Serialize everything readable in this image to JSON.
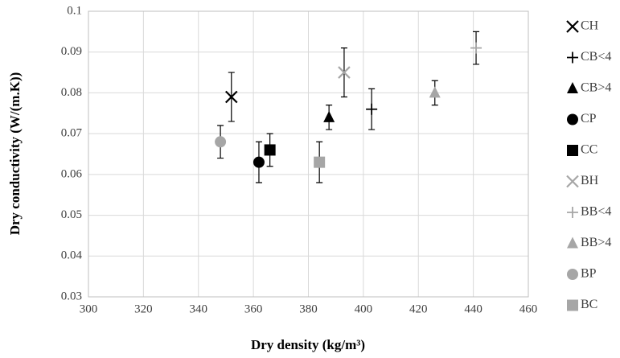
{
  "chart_data": {
    "type": "scatter",
    "xlabel": "Dry density (kg/m³)",
    "ylabel": "Dry conductivity (W/(m.K))",
    "xlim": [
      300,
      460
    ],
    "xticks": [
      300,
      320,
      340,
      360,
      380,
      400,
      420,
      440,
      460
    ],
    "ylim": [
      0.03,
      0.1
    ],
    "yticks": [
      0.03,
      0.04,
      0.05,
      0.06,
      0.07,
      0.08,
      0.09,
      0.1
    ],
    "grid": true,
    "legend": "right",
    "series": [
      {
        "name": "CH",
        "color": "#000000",
        "marker": "x",
        "x": [
          352
        ],
        "values": [
          0.079
        ],
        "errors": [
          0.006
        ]
      },
      {
        "name": "CB<4",
        "color": "#000000",
        "marker": "plus",
        "x": [
          403
        ],
        "values": [
          0.076
        ],
        "errors": [
          0.005
        ]
      },
      {
        "name": "CB>4",
        "color": "#000000",
        "marker": "triangle",
        "x": [
          387.5
        ],
        "values": [
          0.074
        ],
        "errors": [
          0.003
        ]
      },
      {
        "name": "CP",
        "color": "#000000",
        "marker": "circle",
        "x": [
          362
        ],
        "values": [
          0.063
        ],
        "errors": [
          0.005
        ]
      },
      {
        "name": "CC",
        "color": "#000000",
        "marker": "square",
        "x": [
          366
        ],
        "values": [
          0.066
        ],
        "errors": [
          0.004
        ]
      },
      {
        "name": "BH",
        "color": "#a6a6a6",
        "marker": "x",
        "x": [
          393
        ],
        "values": [
          0.085
        ],
        "errors": [
          0.006
        ]
      },
      {
        "name": "BB<4",
        "color": "#a6a6a6",
        "marker": "plus",
        "x": [
          441
        ],
        "values": [
          0.091
        ],
        "errors": [
          0.004
        ]
      },
      {
        "name": "BB>4",
        "color": "#a6a6a6",
        "marker": "triangle",
        "x": [
          426
        ],
        "values": [
          0.08
        ],
        "errors": [
          0.003
        ]
      },
      {
        "name": "BP",
        "color": "#a6a6a6",
        "marker": "circle",
        "x": [
          348
        ],
        "values": [
          0.068
        ],
        "errors": [
          0.004
        ]
      },
      {
        "name": "BC",
        "color": "#a6a6a6",
        "marker": "square",
        "x": [
          384
        ],
        "values": [
          0.063
        ],
        "errors": [
          0.005
        ]
      }
    ]
  }
}
